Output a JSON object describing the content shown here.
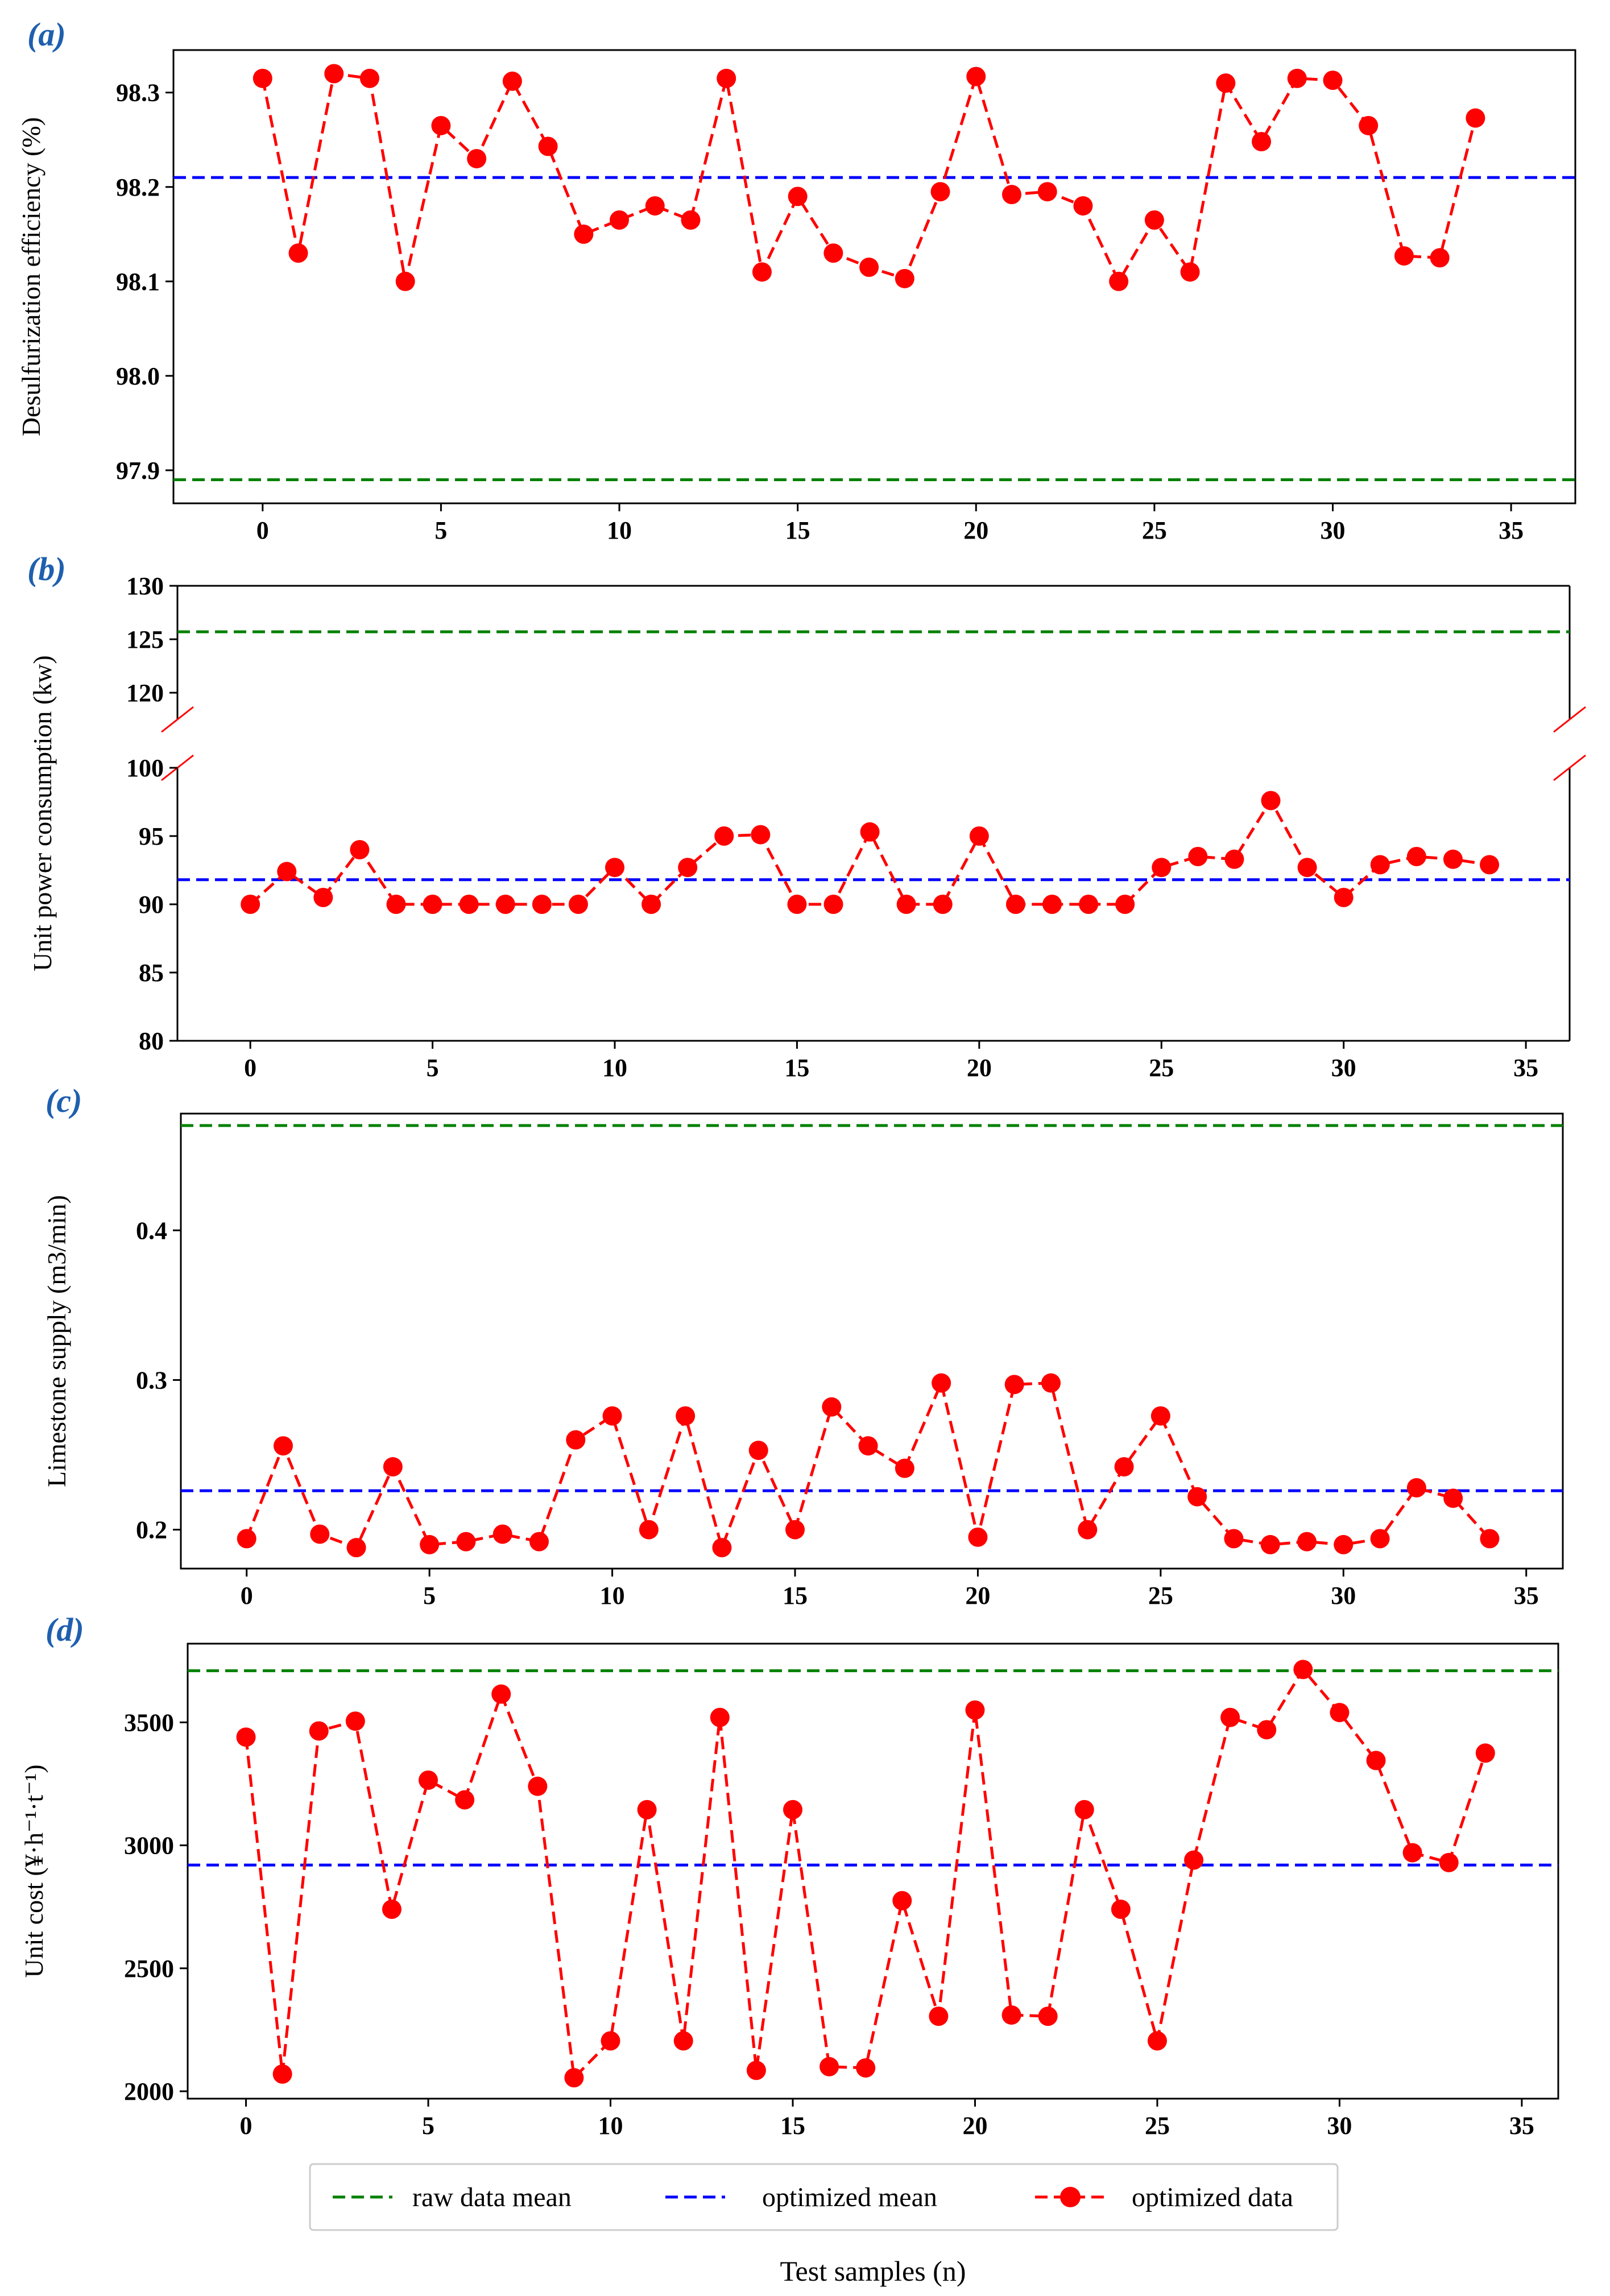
{
  "colors": {
    "raw": "#008000",
    "optimized_mean": "#0000ff",
    "optimized_data": "#ff0000",
    "panel_label": "#1f5fae"
  },
  "legend": {
    "raw": "raw data mean",
    "optimized_mean": "optimized mean",
    "optimized_data": "optimized data"
  },
  "xlabel": "Test samples (n)",
  "chart_data": [
    {
      "type": "line",
      "panel_label": "(a)",
      "ylabel": "Desulfurization efficiency (%)",
      "x": [
        0,
        1,
        2,
        3,
        4,
        5,
        6,
        7,
        8,
        9,
        10,
        11,
        12,
        13,
        14,
        15,
        16,
        17,
        18,
        19,
        20,
        21,
        22,
        23,
        24,
        25,
        26,
        27,
        28,
        29,
        30,
        31,
        32,
        33,
        34
      ],
      "values": [
        98.315,
        98.13,
        98.32,
        98.315,
        98.1,
        98.265,
        98.23,
        98.312,
        98.243,
        98.15,
        98.165,
        98.18,
        98.165,
        98.315,
        98.11,
        98.19,
        98.13,
        98.115,
        98.103,
        98.195,
        98.317,
        98.192,
        98.195,
        98.18,
        98.1,
        98.165,
        98.11,
        98.31,
        98.248,
        98.315,
        98.313,
        98.265,
        98.127,
        98.125,
        98.273
      ],
      "raw_mean": 97.89,
      "optimized_mean": 98.21,
      "xlim": [
        -2.5,
        36.8
      ],
      "ylim": [
        97.865,
        98.345
      ],
      "xticks": [
        0,
        5,
        10,
        15,
        20,
        25,
        30,
        35
      ],
      "yticks": [
        97.9,
        98.0,
        98.1,
        98.2,
        98.3
      ],
      "ytick_labels": [
        "97.9",
        "98.0",
        "98.1",
        "98.2",
        "98.3"
      ]
    },
    {
      "type": "line",
      "panel_label": "(b)",
      "ylabel": "Unit power consumption (kw)",
      "broken_axis": true,
      "x": [
        0,
        1,
        2,
        3,
        4,
        5,
        6,
        7,
        8,
        9,
        10,
        11,
        12,
        13,
        14,
        15,
        16,
        17,
        18,
        19,
        20,
        21,
        22,
        23,
        24,
        25,
        26,
        27,
        28,
        29,
        30,
        31,
        32,
        33,
        34
      ],
      "values": [
        90.0,
        92.4,
        90.5,
        94.0,
        90.0,
        90.0,
        90.0,
        90.0,
        90.0,
        90.0,
        92.7,
        90.0,
        92.7,
        95.0,
        95.1,
        90.0,
        90.0,
        95.3,
        90.0,
        90.0,
        95.0,
        90.0,
        90.0,
        90.0,
        90.0,
        92.7,
        93.5,
        93.3,
        97.6,
        92.7,
        90.5,
        92.9,
        93.5,
        93.3,
        92.9
      ],
      "raw_mean": 125.7,
      "optimized_mean": 91.8,
      "xlim": [
        -2.0,
        36.2
      ],
      "ylim_lower": [
        80,
        100
      ],
      "ylim_upper": [
        117.5,
        130
      ],
      "xticks": [
        0,
        5,
        10,
        15,
        20,
        25,
        30,
        35
      ],
      "yticks_lower": [
        80,
        85,
        90,
        95,
        100
      ],
      "yticks_upper": [
        120,
        125,
        130
      ]
    },
    {
      "type": "line",
      "panel_label": "(c)",
      "ylabel": "Limestone supply (m3/min)",
      "x": [
        0,
        1,
        2,
        3,
        4,
        5,
        6,
        7,
        8,
        9,
        10,
        11,
        12,
        13,
        14,
        15,
        16,
        17,
        18,
        19,
        20,
        21,
        22,
        23,
        24,
        25,
        26,
        27,
        28,
        29,
        30,
        31,
        32,
        33,
        34
      ],
      "values": [
        0.194,
        0.256,
        0.197,
        0.188,
        0.242,
        0.19,
        0.192,
        0.197,
        0.192,
        0.26,
        0.276,
        0.2,
        0.276,
        0.188,
        0.253,
        0.2,
        0.282,
        0.256,
        0.241,
        0.298,
        0.195,
        0.297,
        0.298,
        0.2,
        0.242,
        0.276,
        0.222,
        0.194,
        0.19,
        0.192,
        0.19,
        0.194,
        0.228,
        0.221,
        0.194
      ],
      "raw_mean": 0.47,
      "optimized_mean": 0.226,
      "xlim": [
        -1.8,
        36.0
      ],
      "ylim": [
        0.174,
        0.478
      ],
      "xticks": [
        0,
        5,
        10,
        15,
        20,
        25,
        30,
        35
      ],
      "yticks": [
        0.2,
        0.3,
        0.4
      ],
      "ytick_labels": [
        "0.2",
        "0.3",
        "0.4"
      ]
    },
    {
      "type": "line",
      "panel_label": "(d)",
      "ylabel": "Unit cost (¥·h⁻¹·t⁻¹)",
      "x": [
        0,
        1,
        2,
        3,
        4,
        5,
        6,
        7,
        8,
        9,
        10,
        11,
        12,
        13,
        14,
        15,
        16,
        17,
        18,
        19,
        20,
        21,
        22,
        23,
        24,
        25,
        26,
        27,
        28,
        29,
        30,
        31,
        32,
        33,
        34
      ],
      "values": [
        3440,
        2070,
        3465,
        3505,
        2740,
        3265,
        3185,
        3615,
        3240,
        2055,
        2205,
        3145,
        2205,
        3520,
        2085,
        3145,
        2100,
        2095,
        2775,
        2305,
        3550,
        2310,
        2305,
        3145,
        2740,
        2205,
        2940,
        3520,
        3470,
        3715,
        3540,
        3345,
        2970,
        2930,
        3375
      ],
      "raw_mean": 3710,
      "optimized_mean": 2920,
      "xlim": [
        -1.6,
        36.0
      ],
      "ylim": [
        1970,
        3820
      ],
      "xticks": [
        0,
        5,
        10,
        15,
        20,
        25,
        30,
        35
      ],
      "yticks": [
        2000,
        2500,
        3000,
        3500
      ],
      "ytick_labels": [
        "2000",
        "2500",
        "3000",
        "3500"
      ]
    }
  ]
}
